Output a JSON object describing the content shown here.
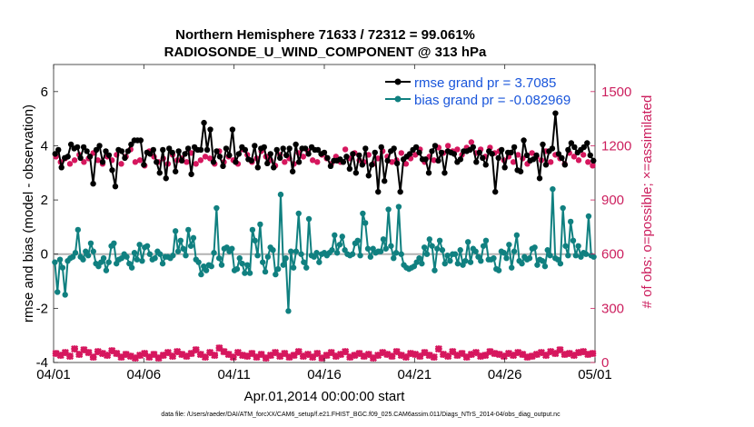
{
  "chart_data": {
    "type": "line",
    "title": "Northern Hemisphere 71633 / 72312 = 99.061%",
    "subtitle": "RADIOSONDE_U_WIND_COMPONENT @ 313 hPa",
    "xlabel": "Apr.01,2014 00:00:00 start",
    "ylabel": "rmse and bias (model - observation)",
    "y2label": "# of obs: o=possible; ×=assimilated",
    "footnote": "data file: /Users/raeder/DAI/ATM_forcXX/CAM6_setup/f.e21.FHIST_BGC.f09_025.CAM6assim.011/Diags_NTrS_2014-04/obs_diag_output.nc",
    "xlim": [
      0,
      30
    ],
    "ylim": [
      -4,
      7
    ],
    "y2lim": [
      0,
      1650
    ],
    "x_ticks": [
      0,
      5,
      10,
      15,
      20,
      25,
      30
    ],
    "x_tick_labels": [
      "04/01",
      "04/06",
      "04/11",
      "04/16",
      "04/21",
      "04/26",
      "05/01"
    ],
    "y_ticks": [
      -4,
      -2,
      0,
      2,
      4,
      6
    ],
    "y_tick_labels": [
      "-4",
      "-2",
      "0",
      "2",
      "4",
      "6"
    ],
    "y2_ticks": [
      0,
      300,
      600,
      900,
      1200,
      1500
    ],
    "y2_tick_labels": [
      "0",
      "300",
      "600",
      "900",
      "1200",
      "1500"
    ],
    "legend": {
      "position": "top-right",
      "entries": [
        "rmse grand pr = 3.7085",
        "bias grand pr = -0.082969"
      ]
    },
    "colors": {
      "rmse": "#000000",
      "bias": "#108080",
      "obs": "#d6175e",
      "zero_line": "#b3b3b3",
      "legend_text": "#1a56db",
      "right_axis": "#cc1f5e"
    },
    "series": [
      {
        "name": "rmse",
        "axis": "left",
        "values": [
          3.7,
          3.85,
          3.2,
          3.55,
          3.6,
          4.05,
          3.9,
          3.95,
          3.55,
          3.95,
          3.8,
          3.6,
          2.6,
          3.85,
          4.0,
          3.4,
          3.8,
          3.65,
          3.1,
          2.5,
          3.85,
          3.8,
          3.55,
          3.8,
          4.05,
          4.2,
          4.2,
          4.2,
          3.3,
          3.75,
          3.7,
          3.85,
          3.4,
          3.0,
          3.85,
          2.8,
          3.9,
          3.75,
          3.05,
          3.8,
          3.45,
          3.7,
          3.9,
          2.95,
          3.95,
          3.85,
          3.85,
          4.85,
          3.85,
          4.6,
          3.4,
          3.8,
          3.6,
          3.25,
          3.9,
          3.65,
          4.6,
          3.4,
          3.7,
          3.95,
          3.85,
          3.5,
          3.45,
          4.0,
          3.2,
          3.9,
          3.95,
          3.35,
          3.7,
          3.2,
          3.85,
          3.55,
          3.9,
          3.65,
          3.9,
          3.05,
          4.05,
          3.4,
          3.9,
          3.9,
          3.7,
          3.95,
          3.85,
          3.85,
          3.7,
          3.75,
          3.55,
          3.25,
          3.45,
          3.45,
          3.5,
          3.4,
          3.6,
          3.15,
          3.7,
          3.0,
          3.65,
          3.3,
          3.9,
          2.9,
          3.3,
          3.75,
          2.3,
          3.95,
          2.7,
          3.45,
          3.8,
          3.9,
          3.35,
          2.3,
          3.5,
          3.6,
          3.7,
          3.85,
          3.95,
          3.75,
          3.5,
          3.5,
          3.0,
          3.8,
          4.0,
          3.45,
          3.75,
          3.0,
          3.8,
          3.75,
          3.7,
          3.4,
          3.5,
          3.8,
          3.8,
          3.85,
          3.95,
          3.4,
          3.75,
          3.55,
          3.3,
          3.8,
          3.7,
          2.3,
          3.55,
          3.85,
          3.2,
          3.75,
          3.75,
          3.95,
          3.1,
          3.05,
          4.2,
          3.65,
          3.45,
          3.5,
          3.65,
          2.8,
          4.05,
          3.3,
          3.8,
          3.9,
          5.2,
          3.7,
          3.55,
          3.3,
          3.85,
          4.1,
          3.95,
          3.75,
          3.85,
          3.95,
          4.1,
          3.65,
          3.45
        ]
      },
      {
        "name": "bias",
        "axis": "left",
        "values": [
          -0.3,
          -1.4,
          -0.2,
          -0.5,
          -1.5,
          -0.25,
          -0.15,
          -0.1,
          0.05,
          0.9,
          -0.1,
          -0.2,
          0.1,
          -0.05,
          0.4,
          0.1,
          -0.35,
          -0.45,
          -0.3,
          -0.15,
          -0.6,
          -0.3,
          0.3,
          0.4,
          -0.35,
          -0.2,
          -0.15,
          0.0,
          -0.1,
          -0.35,
          -0.5,
          0.05,
          -0.2,
          0.35,
          -0.25,
          0.25,
          0.3,
          0.0,
          -0.2,
          -0.15,
          0.1,
          0.0,
          -0.35,
          -0.1,
          -0.1,
          -0.15,
          -0.05,
          0.85,
          0.1,
          0.5,
          0.2,
          -0.05,
          0.9,
          0.3,
          0.6,
          -0.2,
          -0.3,
          -0.75,
          -0.45,
          -0.6,
          -0.4,
          -0.45,
          0.05,
          1.7,
          -0.15,
          -0.4,
          0.2,
          0.25,
          0.1,
          0.2,
          -0.6,
          -0.55,
          -0.15,
          -0.35,
          -0.7,
          -0.4,
          -0.7,
          0.9,
          0.5,
          -0.05,
          1.1,
          -0.3,
          -0.65,
          -0.1,
          0.25,
          0.15,
          -0.75,
          -0.55,
          2.2,
          -0.4,
          -0.15,
          -2.1,
          0.1,
          -0.5,
          0.1,
          1.5,
          0.0,
          -0.3,
          -0.5,
          1.3,
          -0.05,
          -0.1,
          0.05,
          -0.3,
          0.0,
          0.05,
          -0.05,
          0.05,
          0.15,
          0.7,
          0.05,
          0.35,
          0.65,
          0.15,
          0.0,
          -0.05,
          0.0,
          0.4,
          0.5,
          -0.05,
          1.5,
          1.15,
          0.2,
          -0.1,
          0.2,
          0.05,
          0.1,
          0.1,
          0.55,
          0.2,
          1.65,
          0.3,
          -0.15,
          0.05,
          1.75,
          0.0,
          -0.4,
          -0.5,
          -0.55,
          -0.5,
          -0.45,
          -0.3,
          -0.15,
          -0.35,
          0.25,
          0.0,
          0.55,
          0.3,
          -0.6,
          0.2,
          0.5,
          0.15,
          -0.35,
          -0.05,
          -0.25,
          0.0,
          0.0,
          -0.35,
          0.15,
          -0.4,
          -0.25,
          0.45,
          -0.3,
          0.2,
          0.1,
          -0.1,
          -0.25,
          0.3,
          0.5,
          -0.2,
          -0.2,
          -0.15,
          -0.55,
          -0.6,
          0.1,
          0.05,
          -0.15,
          0.35,
          -0.5,
          0.1,
          0.7,
          -0.25,
          -0.35,
          -0.1,
          -0.2,
          -0.15,
          0.2,
          0.25,
          -0.4,
          -0.2,
          -0.25,
          -0.45,
          0.15,
          -0.05,
          2.4,
          -0.15,
          -0.2,
          -0.35,
          1.7,
          0.3,
          -0.05,
          1.2,
          0.5,
          -0.05,
          0.3,
          -0.1,
          0.05,
          0.0,
          1.4,
          -0.05,
          -0.1
        ]
      },
      {
        "name": "obs_possible",
        "axis": "right",
        "values": [
          1140,
          1110,
          1130,
          1100,
          1120,
          1150,
          1110,
          1130,
          1160,
          1120,
          1100,
          1140,
          1120,
          1150,
          1100,
          1140,
          1180,
          1110,
          1120,
          1090,
          1170,
          1140,
          1110,
          1130,
          1100,
          1150,
          1120,
          1130,
          1110,
          1160,
          1100,
          1120,
          1140,
          1130,
          1100,
          1170,
          1110,
          1140,
          1120,
          1100,
          1180,
          1150,
          1110,
          1130,
          1170,
          1140,
          1120,
          1090,
          1150,
          1110,
          1130,
          1100,
          1160,
          1140,
          1170,
          1120,
          1110,
          1150,
          1130,
          1100,
          1140,
          1110,
          1180,
          1130,
          1160,
          1120,
          1110,
          1150,
          1100,
          1130,
          1170,
          1140,
          1110,
          1120,
          1160,
          1100,
          1130,
          1150,
          1180,
          1110,
          1140,
          1120,
          1190,
          1160,
          1200,
          1170,
          1180,
          1150,
          1190,
          1220,
          1160,
          1180,
          1140,
          1190,
          1160,
          1170,
          1120,
          1140,
          1110,
          1150,
          1130,
          1100,
          1160,
          1140,
          1120,
          1170,
          1110,
          1150,
          1130,
          1100,
          1160,
          1140,
          1120,
          1150,
          1110,
          1090
        ]
      },
      {
        "name": "obs_assimilated",
        "axis": "right",
        "values": [
          50,
          40,
          55,
          35,
          75,
          45,
          70,
          55,
          30,
          60,
          50,
          40,
          65,
          50,
          30,
          45,
          35,
          25,
          40,
          50,
          30,
          45,
          25,
          40,
          55,
          35,
          60,
          45,
          35,
          50,
          70,
          45,
          30,
          55,
          40,
          80,
          60,
          45,
          30,
          55,
          40,
          35,
          50,
          30,
          45,
          25,
          40,
          55,
          35,
          50,
          30,
          40,
          60,
          35,
          45,
          30,
          50,
          25,
          40,
          55,
          35,
          45,
          60,
          30,
          40,
          50,
          35,
          45,
          25,
          40,
          55,
          45,
          35,
          60,
          40,
          30,
          50,
          45,
          35,
          55,
          40,
          30,
          75,
          45,
          35,
          60,
          40,
          50,
          30,
          45,
          55,
          35,
          40,
          60,
          50,
          45,
          35,
          50,
          40,
          55,
          45,
          30,
          35,
          45,
          55,
          40,
          60,
          50,
          70,
          45,
          50,
          40,
          55,
          60,
          45,
          50
        ]
      }
    ]
  }
}
